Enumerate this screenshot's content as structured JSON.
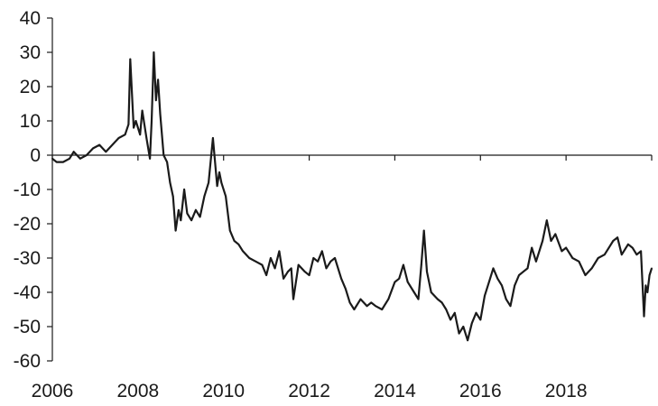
{
  "chart_data": {
    "type": "line",
    "title": "",
    "xlabel": "",
    "ylabel": "",
    "xlim": [
      2006,
      2020
    ],
    "ylim": [
      -60,
      40
    ],
    "grid": false,
    "x_ticks": [
      {
        "value": 2006,
        "label": "2006"
      },
      {
        "value": 2008,
        "label": "2008"
      },
      {
        "value": 2010,
        "label": "2010"
      },
      {
        "value": 2012,
        "label": "2012"
      },
      {
        "value": 2014,
        "label": "2014"
      },
      {
        "value": 2016,
        "label": "2016"
      },
      {
        "value": 2018,
        "label": "2018"
      }
    ],
    "y_ticks": [
      {
        "value": 40,
        "label": "40"
      },
      {
        "value": 30,
        "label": "30"
      },
      {
        "value": 20,
        "label": "20"
      },
      {
        "value": 10,
        "label": "10"
      },
      {
        "value": 0,
        "label": "0"
      },
      {
        "value": -10,
        "label": "-10"
      },
      {
        "value": -20,
        "label": "-20"
      },
      {
        "value": -30,
        "label": "-30"
      },
      {
        "value": -40,
        "label": "-40"
      },
      {
        "value": -50,
        "label": "-50"
      },
      {
        "value": -60,
        "label": "-60"
      }
    ],
    "series": [
      {
        "color": "#1a1a1a",
        "x": [
          2006.0,
          2006.1,
          2006.25,
          2006.4,
          2006.5,
          2006.65,
          2006.8,
          2006.95,
          2007.1,
          2007.25,
          2007.4,
          2007.55,
          2007.7,
          2007.78,
          2007.82,
          2007.9,
          2007.95,
          2008.05,
          2008.1,
          2008.2,
          2008.28,
          2008.32,
          2008.37,
          2008.42,
          2008.47,
          2008.52,
          2008.6,
          2008.68,
          2008.75,
          2008.82,
          2008.88,
          2008.95,
          2009.0,
          2009.08,
          2009.15,
          2009.25,
          2009.35,
          2009.45,
          2009.55,
          2009.65,
          2009.75,
          2009.85,
          2009.9,
          2009.95,
          2010.05,
          2010.15,
          2010.25,
          2010.35,
          2010.45,
          2010.6,
          2010.75,
          2010.9,
          2011.0,
          2011.1,
          2011.2,
          2011.3,
          2011.4,
          2011.5,
          2011.58,
          2011.63,
          2011.75,
          2011.9,
          2012.0,
          2012.1,
          2012.2,
          2012.3,
          2012.4,
          2012.5,
          2012.6,
          2012.75,
          2012.85,
          2012.95,
          2013.05,
          2013.2,
          2013.35,
          2013.45,
          2013.55,
          2013.7,
          2013.85,
          2014.0,
          2014.1,
          2014.2,
          2014.3,
          2014.45,
          2014.55,
          2014.62,
          2014.68,
          2014.75,
          2014.85,
          2015.0,
          2015.1,
          2015.2,
          2015.3,
          2015.4,
          2015.5,
          2015.6,
          2015.7,
          2015.8,
          2015.9,
          2016.0,
          2016.1,
          2016.2,
          2016.3,
          2016.4,
          2016.5,
          2016.6,
          2016.7,
          2016.8,
          2016.9,
          2017.0,
          2017.1,
          2017.2,
          2017.3,
          2017.45,
          2017.55,
          2017.65,
          2017.75,
          2017.9,
          2018.0,
          2018.15,
          2018.3,
          2018.45,
          2018.6,
          2018.75,
          2018.9,
          2019.0,
          2019.1,
          2019.2,
          2019.3,
          2019.45,
          2019.55,
          2019.65,
          2019.75,
          2019.82,
          2019.86,
          2019.9,
          2019.95,
          2020.0
        ],
        "values": [
          -1,
          -2,
          -2,
          -1,
          1,
          -1,
          0,
          2,
          3,
          1,
          3,
          5,
          6,
          9,
          28,
          8,
          10,
          6,
          13,
          5,
          -1,
          10,
          30,
          16,
          22,
          12,
          0,
          -2,
          -8,
          -12,
          -22,
          -16,
          -19,
          -10,
          -17,
          -19,
          -16,
          -18,
          -12,
          -8,
          5,
          -9,
          -5,
          -8,
          -12,
          -22,
          -25,
          -26,
          -28,
          -30,
          -31,
          -32,
          -35,
          -30,
          -33,
          -28,
          -36,
          -34,
          -33,
          -42,
          -32,
          -34,
          -35,
          -30,
          -31,
          -28,
          -33,
          -31,
          -30,
          -36,
          -39,
          -43,
          -45,
          -42,
          -44,
          -43,
          -44,
          -45,
          -42,
          -37,
          -36,
          -32,
          -37,
          -40,
          -42,
          -32,
          -22,
          -34,
          -40,
          -42,
          -43,
          -45,
          -48,
          -46,
          -52,
          -50,
          -54,
          -49,
          -46,
          -48,
          -41,
          -37,
          -33,
          -36,
          -38,
          -42,
          -44,
          -38,
          -35,
          -34,
          -33,
          -27,
          -31,
          -25,
          -19,
          -25,
          -23,
          -28,
          -27,
          -30,
          -31,
          -35,
          -33,
          -30,
          -29,
          -27,
          -25,
          -24,
          -29,
          -26,
          -27,
          -29,
          -28,
          -47,
          -38,
          -40,
          -35,
          -33
        ]
      }
    ]
  }
}
